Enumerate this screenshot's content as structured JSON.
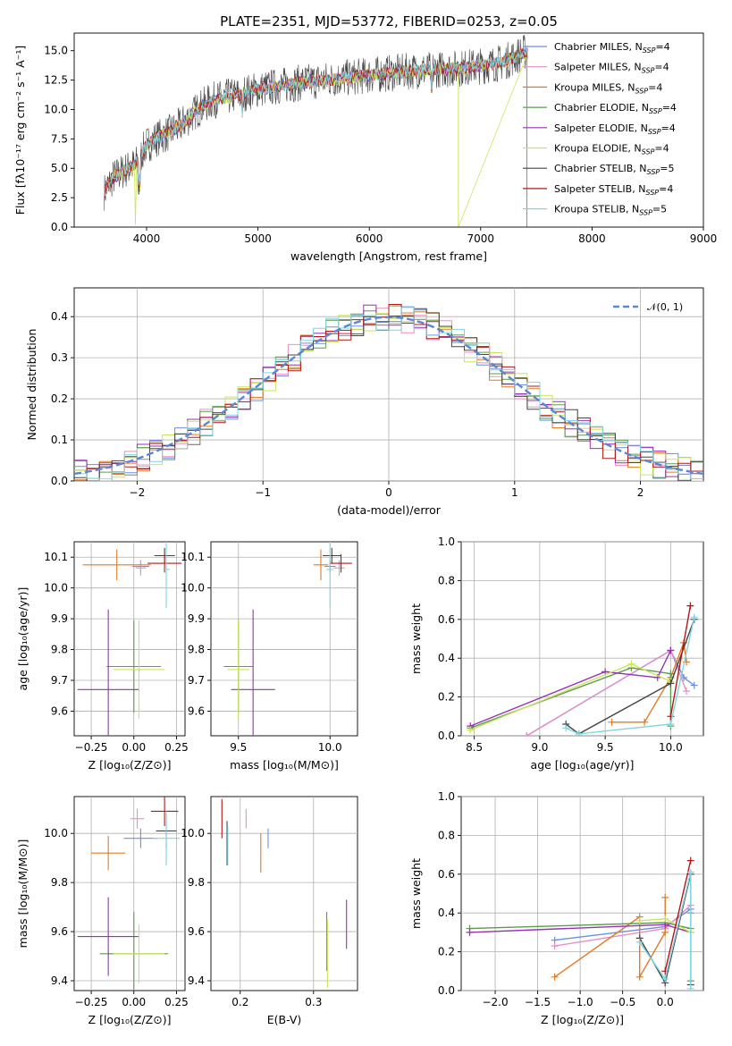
{
  "colors": [
    "#6d8fe0",
    "#e58fc7",
    "#e07b28",
    "#5d9b4f",
    "#9a2fb3",
    "#c9e65a",
    "#444444",
    "#b01818",
    "#7fd6e0"
  ],
  "chart_data": [
    {
      "id": "spectrum",
      "type": "line",
      "title": "PLATE=2351, MJD=53772, FIBERID=0253, z=0.05",
      "xlabel": "wavelength [Angstrom, rest frame]",
      "ylabel": "Flux [fλ10⁻¹⁷ erg cm⁻² s⁻¹ A⁻¹]",
      "xlim": [
        3350,
        9000
      ],
      "ylim": [
        0,
        16.5
      ],
      "xticks": [
        4000,
        5000,
        6000,
        7000,
        8000,
        9000
      ],
      "xtick_labels": [
        "4000",
        "5000",
        "6000",
        "7000",
        "8000",
        "9000"
      ],
      "yticks": [
        0,
        2.5,
        5,
        7.5,
        10,
        12.5,
        15
      ],
      "ytick_labels": [
        "0.0",
        "2.5",
        "5.0",
        "7.5",
        "10.0",
        "12.5",
        "15.0"
      ],
      "grid": false,
      "legend_position": "right",
      "legend": [
        "Chabrier MILES, N_SSP=4",
        "Salpeter MILES, N_SSP=4",
        "Kroupa MILES, N_SSP=4",
        "Chabrier ELODIE, N_SSP=4",
        "Salpeter ELODIE, N_SSP=4",
        "Kroupa ELODIE, N_SSP=4",
        "Chabrier STELIB, N_SSP=5",
        "Salpeter STELIB, N_SSP=4",
        "Kroupa STELIB, N_SSP=5"
      ],
      "data_trend": {
        "wavelength": [
          3620,
          3700,
          3800,
          3900,
          4000,
          4100,
          4200,
          4300,
          4400,
          4500,
          4600,
          4800,
          5000,
          5200,
          5400,
          5600,
          5800,
          6000,
          6200,
          6400,
          6600,
          6800,
          7000,
          7200,
          7400
        ],
        "flux": [
          3.0,
          4.2,
          4.8,
          5.3,
          7.0,
          7.6,
          8.0,
          8.6,
          9.5,
          10.3,
          10.8,
          11.2,
          11.7,
          12.0,
          12.3,
          12.5,
          12.7,
          12.9,
          13.1,
          13.3,
          13.4,
          13.5,
          13.7,
          14.0,
          14.9
        ]
      }
    },
    {
      "id": "residuals",
      "type": "histogram",
      "xlabel": "(data-model)/error",
      "ylabel": "Normed distribution",
      "xlim": [
        -2.5,
        2.5
      ],
      "ylim": [
        0,
        0.47
      ],
      "xticks": [
        -2,
        -1,
        0,
        1,
        2
      ],
      "xtick_labels": [
        "−2",
        "−1",
        "0",
        "1",
        "2"
      ],
      "yticks": [
        0,
        0.1,
        0.2,
        0.3,
        0.4
      ],
      "ytick_labels": [
        "0.0",
        "0.1",
        "0.2",
        "0.3",
        "0.4"
      ],
      "grid": true,
      "legend": [
        "𝒩(0, 1)"
      ],
      "legend_position": "top-right",
      "bin_width": 0.1
    },
    {
      "id": "age-vs-Z",
      "type": "errorbar",
      "xlabel": "Z [log₁₀(Z/Z⊙)]",
      "ylabel": "age  [log₁₀(age/yr)]",
      "xlim": [
        -0.35,
        0.3
      ],
      "ylim": [
        9.52,
        10.15
      ],
      "xticks": [
        -0.25,
        0,
        0.25
      ],
      "xtick_labels": [
        "−0.25",
        "0.00",
        "0.25"
      ],
      "yticks": [
        9.6,
        9.7,
        9.8,
        9.9,
        10.0,
        10.1
      ],
      "ytick_labels": [
        "9.6",
        "9.7",
        "9.8",
        "9.9",
        "10.0",
        "10.1"
      ],
      "grid": true,
      "points": [
        {
          "c": 0,
          "x": 0.04,
          "y": 10.07,
          "xerr": 0.05,
          "yerr": 0.02
        },
        {
          "c": 1,
          "x": 0.04,
          "y": 10.065,
          "xerr": 0.03,
          "yerr": 0.025
        },
        {
          "c": 2,
          "x": -0.1,
          "y": 10.075,
          "xerr": 0.2,
          "yerr": 0.05
        },
        {
          "c": 3,
          "x": 0.0,
          "y": 9.745,
          "xerr": 0.16,
          "yerr": 0.15
        },
        {
          "c": 4,
          "x": -0.15,
          "y": 9.67,
          "xerr": 0.18,
          "yerr": 0.26
        },
        {
          "c": 5,
          "x": 0.03,
          "y": 9.735,
          "xerr": 0.15,
          "yerr": 0.16
        },
        {
          "c": 6,
          "x": 0.18,
          "y": 10.105,
          "xerr": 0.06,
          "yerr": 0.025
        },
        {
          "c": 7,
          "x": 0.18,
          "y": 10.08,
          "xerr": 0.1,
          "yerr": 0.03
        },
        {
          "c": 8,
          "x": 0.19,
          "y": 10.06,
          "xerr": 0.02,
          "yerr": 0.125
        }
      ]
    },
    {
      "id": "age-vs-mass",
      "type": "errorbar",
      "xlabel": "mass [log₁₀(M/M⊙)]",
      "ylabel": "",
      "xlim": [
        9.35,
        10.15
      ],
      "ylim": [
        9.52,
        10.15
      ],
      "xticks": [
        9.5,
        10.0
      ],
      "xtick_labels": [
        "9.5",
        "10.0"
      ],
      "yticks": [
        9.6,
        9.7,
        9.8,
        9.9,
        10.0,
        10.1
      ],
      "ytick_labels": [
        "9.6",
        "9.7",
        "9.8",
        "9.9",
        "10.0",
        "10.1"
      ],
      "grid": true,
      "points": [
        {
          "c": 0,
          "x": 10.0,
          "y": 10.07,
          "xerr": 0.03,
          "yerr": 0.02
        },
        {
          "c": 1,
          "x": 10.05,
          "y": 10.065,
          "xerr": 0.03,
          "yerr": 0.025
        },
        {
          "c": 2,
          "x": 9.95,
          "y": 10.075,
          "xerr": 0.04,
          "yerr": 0.05
        },
        {
          "c": 3,
          "x": 9.5,
          "y": 9.745,
          "xerr": 0.08,
          "yerr": 0.15
        },
        {
          "c": 4,
          "x": 9.58,
          "y": 9.67,
          "xerr": 0.12,
          "yerr": 0.26
        },
        {
          "c": 5,
          "x": 9.5,
          "y": 9.735,
          "xerr": 0.06,
          "yerr": 0.16
        },
        {
          "c": 6,
          "x": 10.01,
          "y": 10.105,
          "xerr": 0.05,
          "yerr": 0.025
        },
        {
          "c": 7,
          "x": 10.06,
          "y": 10.08,
          "xerr": 0.06,
          "yerr": 0.03
        },
        {
          "c": 8,
          "x": 10.0,
          "y": 10.06,
          "xerr": 0.02,
          "yerr": 0.125
        }
      ]
    },
    {
      "id": "weight-vs-age",
      "type": "line",
      "xlabel": "age  [log₁₀(age/yr)]",
      "ylabel": "mass weight",
      "xlim": [
        8.4,
        10.25
      ],
      "ylim": [
        0,
        1
      ],
      "xticks": [
        8.5,
        9.0,
        9.5,
        10.0
      ],
      "xtick_labels": [
        "8.5",
        "9.0",
        "9.5",
        "10.0"
      ],
      "yticks": [
        0,
        0.2,
        0.4,
        0.6,
        0.8,
        1.0
      ],
      "ytick_labels": [
        "0.0",
        "0.2",
        "0.4",
        "0.6",
        "0.8",
        "1.0"
      ],
      "grid": true,
      "series": [
        {
          "c": 0,
          "x": [
            8.9,
            10.0,
            10.1,
            10.18
          ],
          "y": [
            0.0,
            0.44,
            0.3,
            0.26
          ]
        },
        {
          "c": 1,
          "x": [
            8.9,
            10.0,
            10.12
          ],
          "y": [
            0.0,
            0.44,
            0.23
          ]
        },
        {
          "c": 2,
          "x": [
            9.55,
            9.8,
            10.0,
            10.1,
            10.12
          ],
          "y": [
            0.07,
            0.07,
            0.3,
            0.48,
            0.38
          ]
        },
        {
          "c": 3,
          "x": [
            8.47,
            9.7,
            10.0,
            10.0
          ],
          "y": [
            0.04,
            0.35,
            0.32,
            0.05
          ]
        },
        {
          "c": 4,
          "x": [
            8.47,
            9.5,
            9.9,
            10.0
          ],
          "y": [
            0.05,
            0.33,
            0.3,
            0.44
          ]
        },
        {
          "c": 5,
          "x": [
            8.47,
            9.7,
            10.0
          ],
          "y": [
            0.03,
            0.37,
            0.28
          ]
        },
        {
          "c": 6,
          "x": [
            9.2,
            9.3,
            10.0,
            10.18
          ],
          "y": [
            0.06,
            0.01,
            0.27,
            0.6
          ]
        },
        {
          "c": 7,
          "x": [
            10.0,
            10.15
          ],
          "y": [
            0.1,
            0.67
          ]
        },
        {
          "c": 8,
          "x": [
            9.2,
            9.3,
            10.0,
            10.18
          ],
          "y": [
            0.04,
            0.01,
            0.06,
            0.61
          ]
        }
      ]
    },
    {
      "id": "mass-vs-Z",
      "type": "errorbar",
      "xlabel": "Z [log₁₀(Z/Z⊙)]",
      "ylabel": "mass [log₁₀(M/M⊙)]",
      "xlim": [
        -0.35,
        0.3
      ],
      "ylim": [
        9.36,
        10.15
      ],
      "xticks": [
        -0.25,
        0,
        0.25
      ],
      "xtick_labels": [
        "−0.25",
        "0.00",
        "0.25"
      ],
      "yticks": [
        9.4,
        9.6,
        9.8,
        10.0
      ],
      "ytick_labels": [
        "9.4",
        "9.6",
        "9.8",
        "10.0"
      ],
      "grid": true,
      "points": [
        {
          "c": 0,
          "x": 0.04,
          "y": 9.98,
          "xerr": 0.1,
          "yerr": 0.04
        },
        {
          "c": 1,
          "x": 0.02,
          "y": 10.06,
          "xerr": 0.04,
          "yerr": 0.04
        },
        {
          "c": 2,
          "x": -0.15,
          "y": 9.92,
          "xerr": 0.1,
          "yerr": 0.07
        },
        {
          "c": 3,
          "x": 0.0,
          "y": 9.51,
          "xerr": 0.2,
          "yerr": 0.17
        },
        {
          "c": 4,
          "x": -0.15,
          "y": 9.58,
          "xerr": 0.18,
          "yerr": 0.16
        },
        {
          "c": 5,
          "x": 0.03,
          "y": 9.51,
          "xerr": 0.15,
          "yerr": 0.12
        },
        {
          "c": 6,
          "x": 0.19,
          "y": 10.01,
          "xerr": 0.06,
          "yerr": 0.07
        },
        {
          "c": 7,
          "x": 0.18,
          "y": 10.09,
          "xerr": 0.08,
          "yerr": 0.06
        },
        {
          "c": 8,
          "x": 0.19,
          "y": 9.98,
          "xerr": 0.08,
          "yerr": 0.11
        }
      ]
    },
    {
      "id": "mass-vs-ebv",
      "type": "errorbar",
      "xlabel": "E(B-V)",
      "ylabel": "",
      "xlim": [
        0.16,
        0.36
      ],
      "ylim": [
        9.36,
        10.15
      ],
      "xticks": [
        0.2,
        0.3
      ],
      "xtick_labels": [
        "0.2",
        "0.3"
      ],
      "yticks": [
        9.4,
        9.6,
        9.8,
        10.0
      ],
      "ytick_labels": [
        "9.4",
        "9.6",
        "9.8",
        "10.0"
      ],
      "grid": true,
      "points": [
        {
          "c": 0,
          "x": 0.238,
          "y": 9.98,
          "xerr": 0,
          "yerr": 0.04
        },
        {
          "c": 1,
          "x": 0.208,
          "y": 10.06,
          "xerr": 0,
          "yerr": 0.04
        },
        {
          "c": 2,
          "x": 0.228,
          "y": 9.92,
          "xerr": 0,
          "yerr": 0.08
        },
        {
          "c": 3,
          "x": 0.318,
          "y": 9.56,
          "xerr": 0,
          "yerr": 0.12
        },
        {
          "c": 4,
          "x": 0.345,
          "y": 9.63,
          "xerr": 0,
          "yerr": 0.1
        },
        {
          "c": 5,
          "x": 0.319,
          "y": 9.51,
          "xerr": 0,
          "yerr": 0.14
        },
        {
          "c": 6,
          "x": 0.182,
          "y": 9.96,
          "xerr": 0,
          "yerr": 0.09
        },
        {
          "c": 7,
          "x": 0.175,
          "y": 10.06,
          "xerr": 0,
          "yerr": 0.08
        },
        {
          "c": 8,
          "x": 0.183,
          "y": 9.95,
          "xerr": 0,
          "yerr": 0.08
        }
      ]
    },
    {
      "id": "weight-vs-Z",
      "type": "line",
      "xlabel": "Z [log₁₀(Z/Z⊙)]",
      "ylabel": "mass weight",
      "xlim": [
        -2.4,
        0.45
      ],
      "ylim": [
        0,
        1
      ],
      "xticks": [
        -2.0,
        -1.5,
        -1.0,
        -0.5,
        0.0
      ],
      "xtick_labels": [
        "−2.0",
        "−1.5",
        "−1.0",
        "−0.5",
        "0.0"
      ],
      "yticks": [
        0,
        0.2,
        0.4,
        0.6,
        0.8,
        1.0
      ],
      "ytick_labels": [
        "0.0",
        "0.2",
        "0.4",
        "0.6",
        "0.8",
        "1.0"
      ],
      "grid": true,
      "series": [
        {
          "c": 0,
          "x": [
            -1.3,
            0.0,
            0.3,
            0.3
          ],
          "y": [
            0.26,
            0.33,
            0.42,
            0.4
          ]
        },
        {
          "c": 1,
          "x": [
            -1.3,
            0.0,
            0.3
          ],
          "y": [
            0.23,
            0.32,
            0.44
          ]
        },
        {
          "c": 2,
          "x": [
            -1.3,
            -0.3,
            -0.3,
            0.0,
            0.0
          ],
          "y": [
            0.07,
            0.38,
            0.07,
            0.3,
            0.48
          ]
        },
        {
          "c": 3,
          "x": [
            -2.3,
            0.0,
            0.3,
            0.3
          ],
          "y": [
            0.32,
            0.35,
            0.32,
            0.05
          ]
        },
        {
          "c": 4,
          "x": [
            -2.3,
            0.0,
            0.3
          ],
          "y": [
            0.3,
            0.34,
            0.3
          ]
        },
        {
          "c": 5,
          "x": [
            -0.3,
            0.0,
            0.3
          ],
          "y": [
            0.36,
            0.37,
            0.3
          ]
        },
        {
          "c": 6,
          "x": [
            -0.3,
            0.0,
            0.3,
            0.3
          ],
          "y": [
            0.27,
            0.04,
            0.6,
            0.03
          ]
        },
        {
          "c": 7,
          "x": [
            0.0,
            0.3
          ],
          "y": [
            0.1,
            0.67
          ]
        },
        {
          "c": 8,
          "x": [
            -0.3,
            0.0,
            0.3,
            0.3
          ],
          "y": [
            0.25,
            0.06,
            0.61,
            0.01
          ]
        }
      ]
    }
  ]
}
